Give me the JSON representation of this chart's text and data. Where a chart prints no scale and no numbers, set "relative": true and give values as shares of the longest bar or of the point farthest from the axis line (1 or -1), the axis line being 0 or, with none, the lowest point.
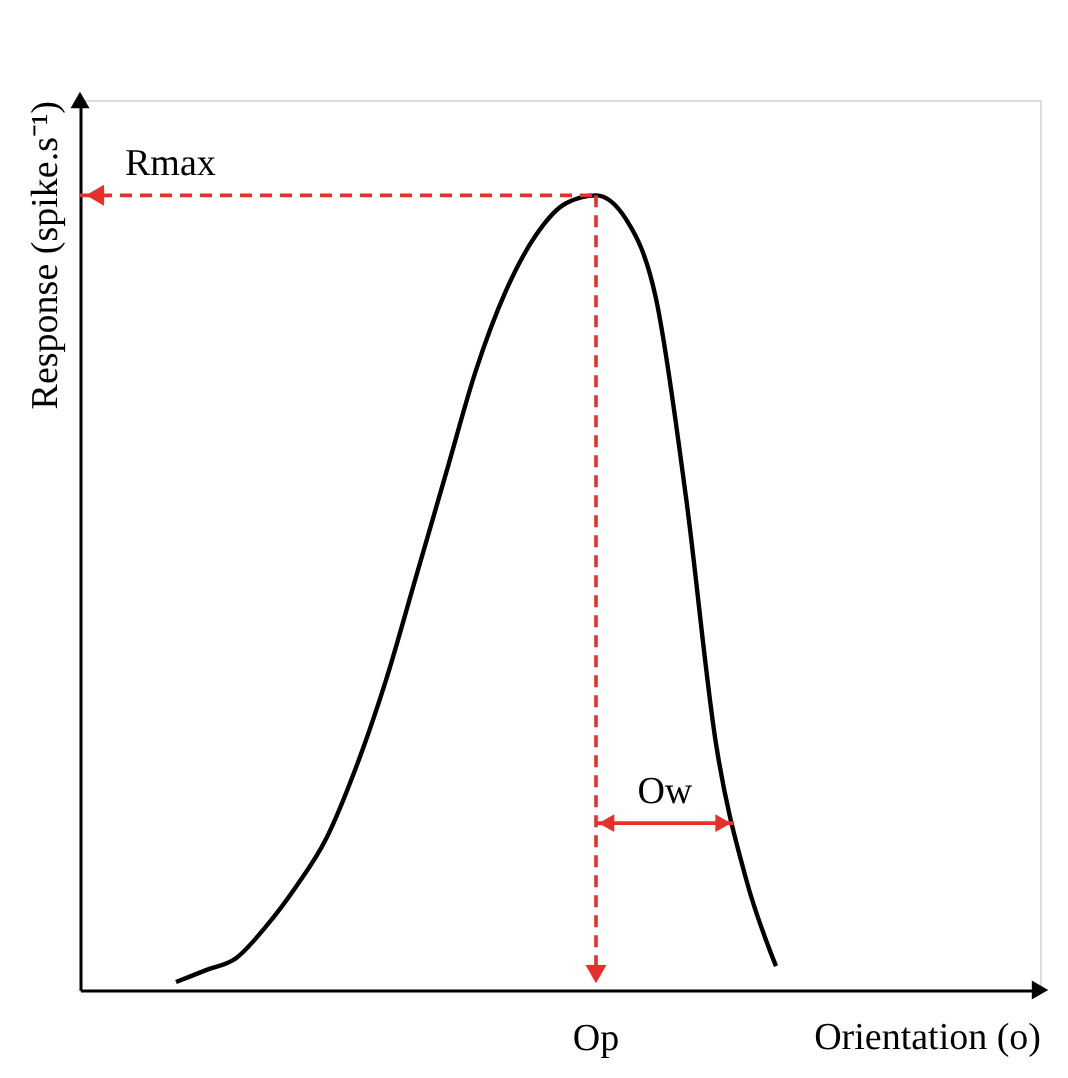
{
  "chart_data": {
    "type": "line",
    "relative": true,
    "xlabel": "Orientation (o)",
    "ylabel": "Response (spike.s⁻¹)",
    "categories": [
      null,
      null,
      null,
      null,
      null,
      null,
      null,
      null,
      null,
      null,
      null,
      null,
      null,
      null,
      null,
      null,
      null,
      null,
      null,
      null,
      null
    ],
    "series": [
      {
        "color": "#000000",
        "values": [
          0.01,
          0.025,
          0.04,
          0.08,
          0.13,
          0.19,
          0.28,
          0.39,
          0.52,
          0.65,
          0.78,
          0.88,
          0.95,
          0.99,
          1,
          0.97,
          0.87,
          0.62,
          0.31,
          0.14,
          0.03
        ]
      }
    ],
    "ref_lines": [
      {
        "axis": "y",
        "value": 1,
        "label": "Rmax",
        "color": "#e8302a",
        "line_style": "dashed"
      }
    ],
    "annotations": [
      "Op",
      "Ow"
    ],
    "grid": false,
    "tick_labels": false,
    "marker": "none",
    "line_style": "solid"
  }
}
